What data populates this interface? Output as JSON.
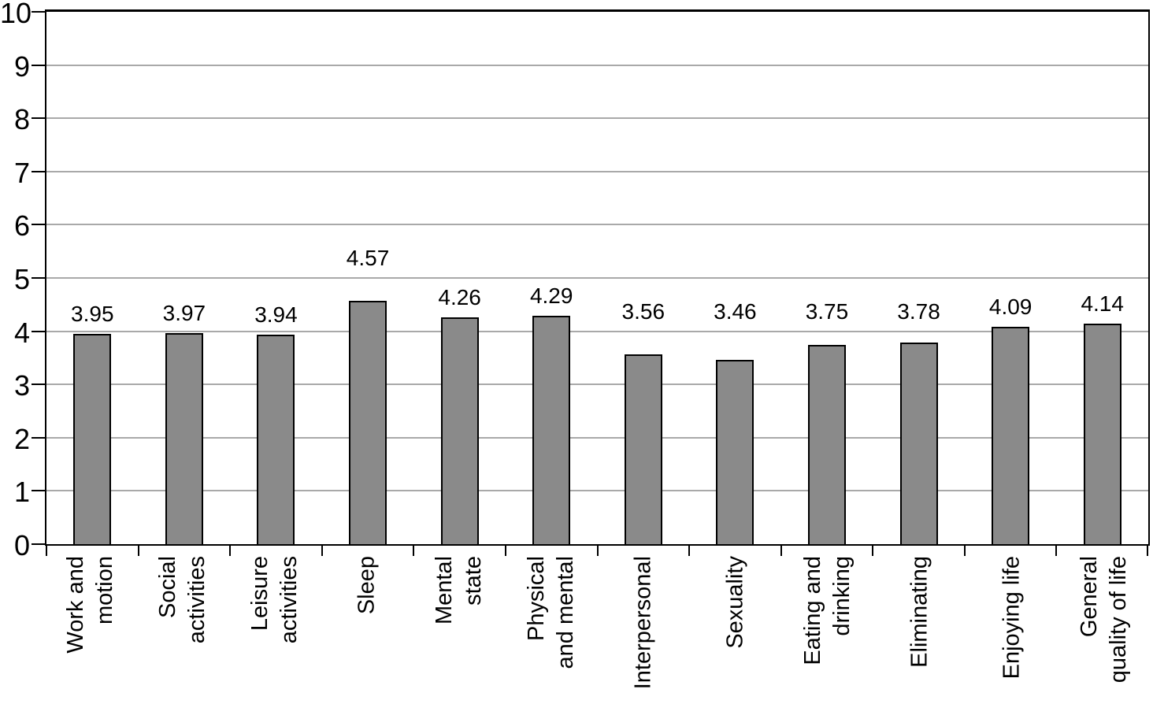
{
  "chart_data": {
    "type": "bar",
    "title": "",
    "xlabel": "",
    "ylabel": "",
    "categories": [
      "Work and motion",
      "Social activities",
      "Leisure activities",
      "Sleep",
      "Mental state",
      "Physical and mental",
      "Interpersonal",
      "Sexuality",
      "Eating and drinking",
      "Eliminating",
      "Enjoying life",
      "General quality of life"
    ],
    "categories_wrapped": [
      "Work and\nmotion",
      "Social\nactivities",
      "Leisure\nactivities",
      "Sleep",
      "Mental\nstate",
      "Physical\nand mental",
      "Interpersonal",
      "Sexuality",
      "Eating and\ndrinking",
      "Eliminating",
      "Enjoying life",
      "General\nquality of life"
    ],
    "values": [
      3.95,
      3.97,
      3.94,
      4.57,
      4.26,
      4.29,
      3.56,
      3.46,
      3.75,
      3.78,
      4.09,
      4.14
    ],
    "data_labels": [
      "3.95",
      "3.97",
      "3.94",
      "4.57",
      "4.26",
      "4.29",
      "3.56",
      "3.46",
      "3.75",
      "3.78",
      "4.09",
      "4.14"
    ],
    "ylim": [
      0,
      10
    ],
    "yticks": [
      0,
      1,
      2,
      3,
      4,
      5,
      6,
      7,
      8,
      9,
      10
    ],
    "grid": "horizontal",
    "legend": null,
    "colors": {
      "bar_fill": "#8a8a8a",
      "bar_border": "#000000",
      "gridline": "#a9a9a9",
      "frame": "#000000",
      "text": "#000000",
      "background": "#ffffff"
    }
  }
}
